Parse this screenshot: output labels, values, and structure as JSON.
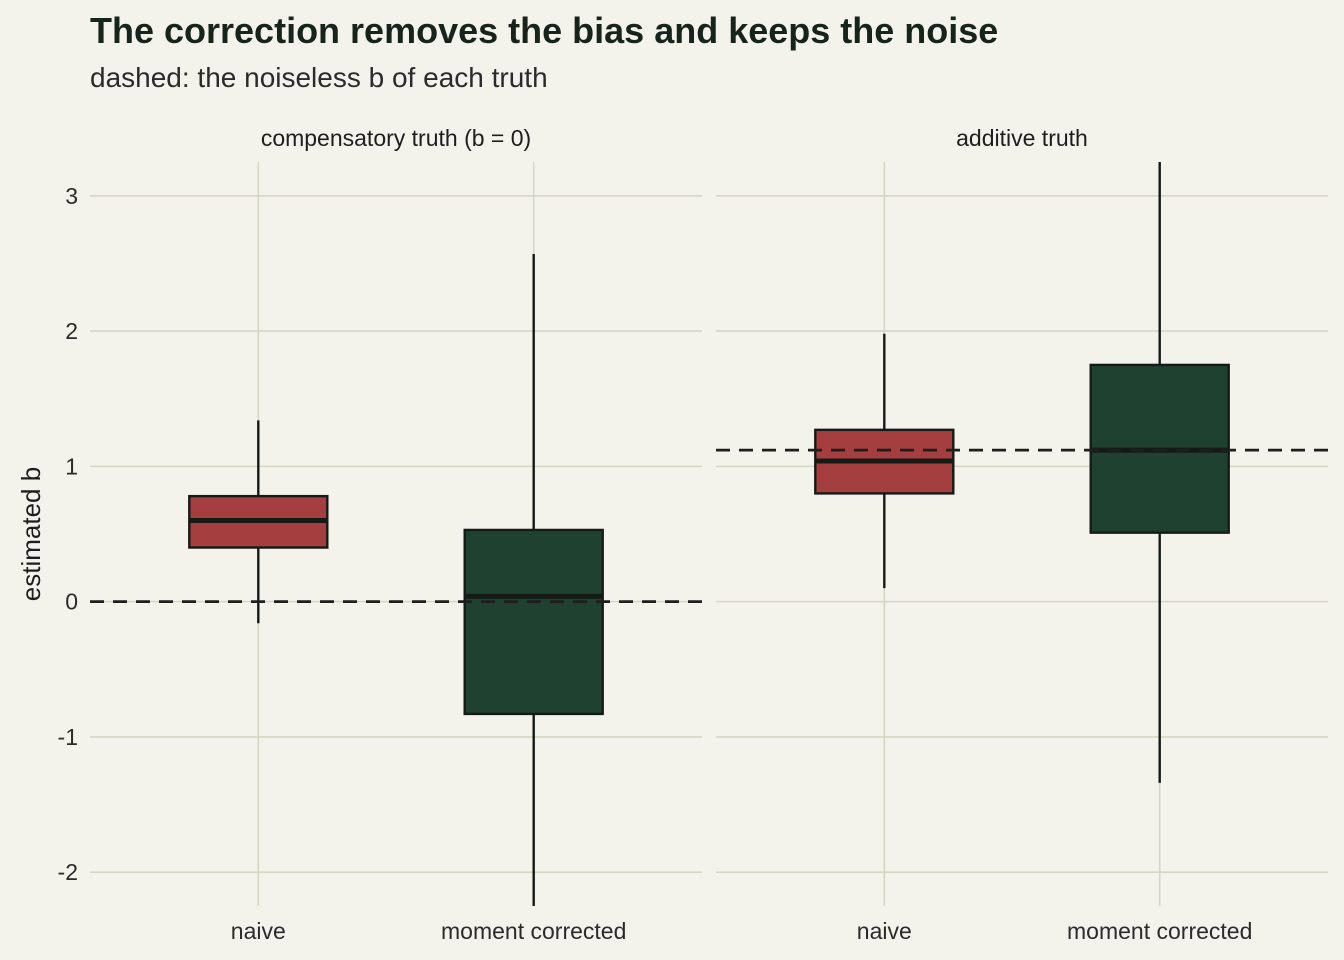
{
  "title": "The correction removes the bias and keeps the noise",
  "subtitle": "dashed: the noiseless b of each truth",
  "colors": {
    "background": "#f3f2eb",
    "grid": "#d6d6c4",
    "naive": "#a53e3f",
    "moment_corrected": "#1f4230",
    "outline": "#151a16"
  },
  "chart_data": {
    "type": "boxplot",
    "ylabel": "estimated b",
    "ylim": [
      -2.25,
      3.25
    ],
    "yticks": [
      -2,
      -1,
      0,
      1,
      2,
      3
    ],
    "ytick_labels": [
      "-2",
      "-1",
      "0",
      "1",
      "2",
      "3"
    ],
    "categories": [
      "naive",
      "moment corrected"
    ],
    "panels": [
      {
        "label": "compensatory truth (b = 0)",
        "reference": 0,
        "boxes": [
          {
            "category": "naive",
            "min": -0.16,
            "q1": 0.4,
            "median": 0.6,
            "q3": 0.78,
            "max": 1.34,
            "color": "#a53e3f"
          },
          {
            "category": "moment corrected",
            "min": -2.25,
            "q1": -0.83,
            "median": 0.04,
            "q3": 0.53,
            "max": 2.57,
            "color": "#1f4230"
          }
        ]
      },
      {
        "label": "additive truth",
        "reference": 1.12,
        "boxes": [
          {
            "category": "naive",
            "min": 0.1,
            "q1": 0.8,
            "median": 1.04,
            "q3": 1.27,
            "max": 1.98,
            "color": "#a53e3f"
          },
          {
            "category": "moment corrected",
            "min": -1.34,
            "q1": 0.51,
            "median": 1.12,
            "q3": 1.75,
            "max": 3.25,
            "color": "#1f4230"
          }
        ]
      }
    ]
  }
}
